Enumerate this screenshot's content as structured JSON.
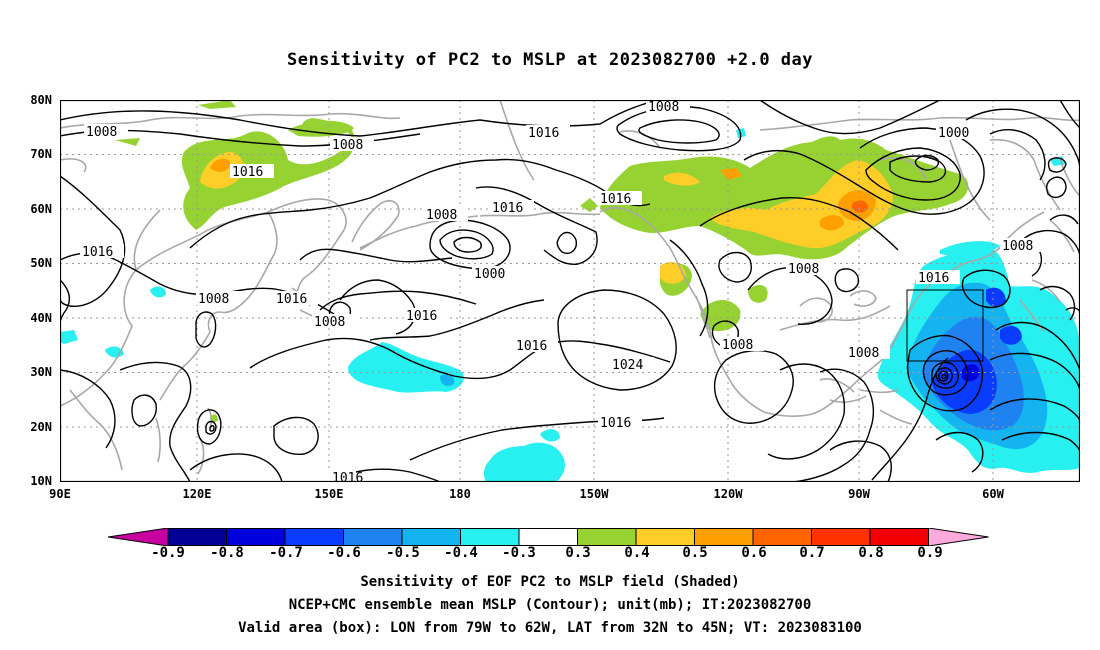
{
  "title": "Sensitivity of PC2 to MSLP at 2023082700 +2.0 day",
  "lat_labels": [
    "80N",
    "70N",
    "60N",
    "50N",
    "40N",
    "30N",
    "20N",
    "10N"
  ],
  "lon_labels": [
    "90E",
    "120E",
    "150E",
    "180",
    "150W",
    "120W",
    "90W",
    "60W"
  ],
  "colorbar": {
    "labels": [
      "-0.9",
      "-0.8",
      "-0.7",
      "-0.6",
      "-0.5",
      "-0.4",
      "-0.3",
      "0.3",
      "0.4",
      "0.5",
      "0.6",
      "0.7",
      "0.8",
      "0.9"
    ],
    "colors": [
      "#000096",
      "#0000dc",
      "#0a3cff",
      "#1e82f0",
      "#14b4f0",
      "#28f0f0",
      "#ffffff",
      "#96d232",
      "#ffcd28",
      "#ffa000",
      "#ff6400",
      "#ff3200",
      "#f50000"
    ],
    "low_arrow_color": "#c800a0",
    "high_arrow_color": "#ffaadc"
  },
  "contour_labels": {
    "c1": "1008",
    "c2": "1008",
    "c3": "1016",
    "c4": "1008",
    "c5": "1000",
    "c6": "1016",
    "c7": "1016",
    "c8": "1008",
    "c9": "1016",
    "c10": "1000",
    "c11": "1016",
    "c12": "1008",
    "c13": "1016",
    "c14": "1008",
    "c15": "1016",
    "c16": "1008",
    "c17": "1016",
    "c18": "1024",
    "c19": "1008",
    "c20": "1016",
    "c21": "1016",
    "c22": "1008",
    "c23": "1008",
    "c24": "1016"
  },
  "caption": {
    "line1": "Sensitivity of EOF PC2 to MSLP field (Shaded)",
    "line2": "NCEP+CMC ensemble mean MSLP (Contour); unit(mb); IT:2023082700",
    "line3": "Valid area (box): LON from 79W to 62W, LAT from 32N to 45N; VT: 2023083100"
  }
}
